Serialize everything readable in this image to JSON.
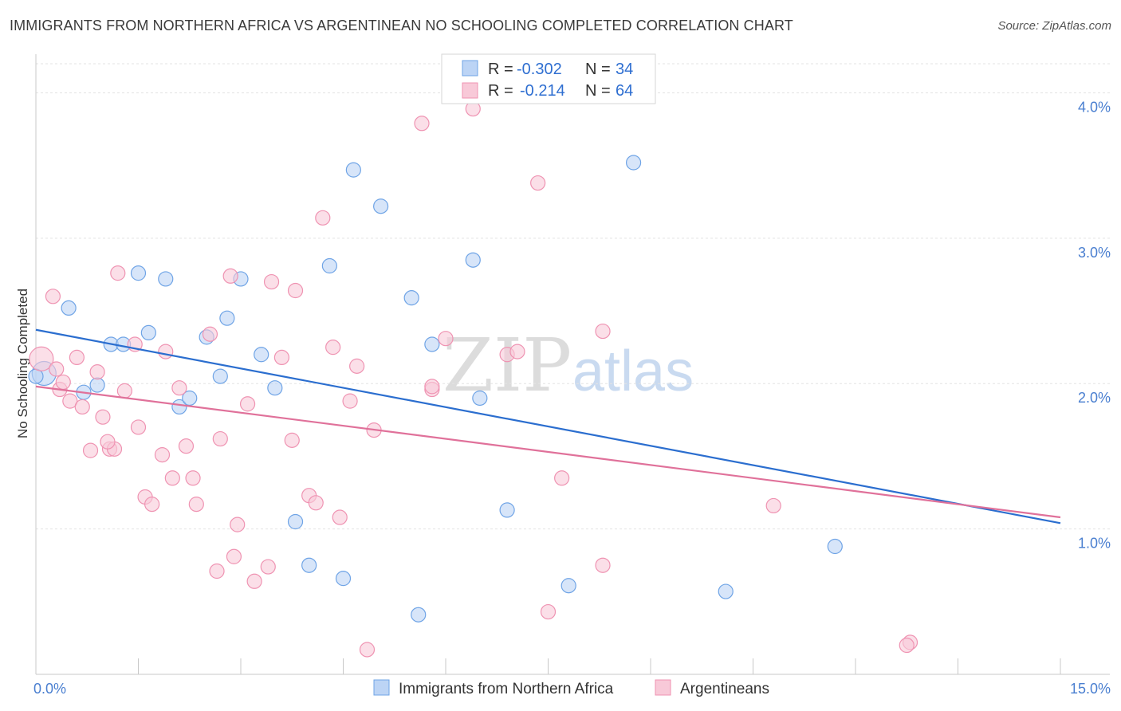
{
  "title": "IMMIGRANTS FROM NORTHERN AFRICA VS ARGENTINEAN NO SCHOOLING COMPLETED CORRELATION CHART",
  "source": "Source: ZipAtlas.com",
  "watermark": {
    "zip": "ZIP",
    "atlas": "atlas"
  },
  "colors": {
    "blue": "#6fa4e6",
    "blue_fill": "#bcd4f5",
    "blue_line": "#2b6ecf",
    "pink": "#ef93b2",
    "pink_fill": "#f8c9d8",
    "pink_line": "#e0719a",
    "grid": "#e3e3e3",
    "axis_text": "#4a7fd0"
  },
  "stats": [
    {
      "r_label": "R =",
      "r": "-0.302",
      "n_label": "N =",
      "n": "34"
    },
    {
      "r_label": "R =",
      "r": "-0.214",
      "n_label": "N =",
      "n": "64"
    }
  ],
  "chart_data": {
    "type": "scatter",
    "ylabel": "No Schooling Completed",
    "xlim": [
      0,
      15
    ],
    "ylim": [
      0,
      4.2
    ],
    "x_tick_labels": [
      "0.0%",
      "15.0%"
    ],
    "y_ticks": [
      1.0,
      2.0,
      3.0,
      4.0
    ],
    "y_tick_labels": [
      "1.0%",
      "2.0%",
      "3.0%",
      "4.0%"
    ],
    "grid": true,
    "legend": [
      "Immigrants from Northern Africa",
      "Argentineans"
    ],
    "series": [
      {
        "name": "Immigrants from Northern Africa",
        "color": "blue",
        "trend": {
          "x": [
            0,
            15
          ],
          "y": [
            2.37,
            1.04
          ]
        },
        "points": [
          {
            "x": 0.12,
            "y": 2.07,
            "big": true
          },
          {
            "x": 0.48,
            "y": 2.52
          },
          {
            "x": 0.9,
            "y": 1.99
          },
          {
            "x": 0.7,
            "y": 1.94
          },
          {
            "x": 1.1,
            "y": 2.27
          },
          {
            "x": 1.28,
            "y": 2.27
          },
          {
            "x": 1.5,
            "y": 2.76
          },
          {
            "x": 1.65,
            "y": 2.35
          },
          {
            "x": 1.9,
            "y": 2.72
          },
          {
            "x": 2.1,
            "y": 1.84
          },
          {
            "x": 2.25,
            "y": 1.9
          },
          {
            "x": 2.5,
            "y": 2.32
          },
          {
            "x": 2.8,
            "y": 2.45
          },
          {
            "x": 2.7,
            "y": 2.05
          },
          {
            "x": 3.0,
            "y": 2.72
          },
          {
            "x": 3.3,
            "y": 2.2
          },
          {
            "x": 3.5,
            "y": 1.97
          },
          {
            "x": 3.8,
            "y": 1.05
          },
          {
            "x": 4.0,
            "y": 0.75
          },
          {
            "x": 4.3,
            "y": 2.81
          },
          {
            "x": 4.5,
            "y": 0.66
          },
          {
            "x": 4.65,
            "y": 3.47
          },
          {
            "x": 5.05,
            "y": 3.22
          },
          {
            "x": 5.5,
            "y": 2.59
          },
          {
            "x": 5.6,
            "y": 0.41
          },
          {
            "x": 5.8,
            "y": 2.27
          },
          {
            "x": 6.4,
            "y": 2.85
          },
          {
            "x": 6.5,
            "y": 1.9
          },
          {
            "x": 6.9,
            "y": 1.13
          },
          {
            "x": 7.8,
            "y": 0.61
          },
          {
            "x": 8.75,
            "y": 3.52
          },
          {
            "x": 10.1,
            "y": 0.57
          },
          {
            "x": 11.7,
            "y": 0.88
          },
          {
            "x": 0.0,
            "y": 2.05
          }
        ]
      },
      {
        "name": "Argentineans",
        "color": "pink",
        "trend": {
          "x": [
            0,
            15
          ],
          "y": [
            1.98,
            1.08
          ]
        },
        "points": [
          {
            "x": 0.08,
            "y": 2.17,
            "big": true
          },
          {
            "x": 0.25,
            "y": 2.6
          },
          {
            "x": 0.35,
            "y": 1.96
          },
          {
            "x": 0.4,
            "y": 2.01
          },
          {
            "x": 0.5,
            "y": 1.88
          },
          {
            "x": 0.6,
            "y": 2.18
          },
          {
            "x": 0.68,
            "y": 1.84
          },
          {
            "x": 0.8,
            "y": 1.54
          },
          {
            "x": 0.9,
            "y": 2.08
          },
          {
            "x": 0.98,
            "y": 1.77
          },
          {
            "x": 1.08,
            "y": 1.55
          },
          {
            "x": 1.15,
            "y": 1.55
          },
          {
            "x": 1.2,
            "y": 2.76
          },
          {
            "x": 1.3,
            "y": 1.95
          },
          {
            "x": 1.45,
            "y": 2.27
          },
          {
            "x": 1.5,
            "y": 1.7
          },
          {
            "x": 1.6,
            "y": 1.22
          },
          {
            "x": 1.7,
            "y": 1.17
          },
          {
            "x": 1.85,
            "y": 1.51
          },
          {
            "x": 1.9,
            "y": 2.22
          },
          {
            "x": 2.0,
            "y": 1.35
          },
          {
            "x": 2.1,
            "y": 1.97
          },
          {
            "x": 2.2,
            "y": 1.57
          },
          {
            "x": 2.3,
            "y": 1.35
          },
          {
            "x": 2.35,
            "y": 1.17
          },
          {
            "x": 2.55,
            "y": 2.34
          },
          {
            "x": 2.65,
            "y": 0.71
          },
          {
            "x": 2.7,
            "y": 1.62
          },
          {
            "x": 2.85,
            "y": 2.74
          },
          {
            "x": 2.9,
            "y": 0.81
          },
          {
            "x": 2.95,
            "y": 1.03
          },
          {
            "x": 3.1,
            "y": 1.86
          },
          {
            "x": 3.2,
            "y": 0.64
          },
          {
            "x": 3.4,
            "y": 0.74
          },
          {
            "x": 3.45,
            "y": 2.7
          },
          {
            "x": 3.6,
            "y": 2.18
          },
          {
            "x": 3.75,
            "y": 1.61
          },
          {
            "x": 3.8,
            "y": 2.64
          },
          {
            "x": 4.0,
            "y": 1.23
          },
          {
            "x": 4.1,
            "y": 1.18
          },
          {
            "x": 4.2,
            "y": 3.14
          },
          {
            "x": 4.35,
            "y": 2.25
          },
          {
            "x": 4.45,
            "y": 1.08
          },
          {
            "x": 4.6,
            "y": 1.88
          },
          {
            "x": 4.7,
            "y": 2.12
          },
          {
            "x": 4.85,
            "y": 0.17
          },
          {
            "x": 4.95,
            "y": 1.68
          },
          {
            "x": 5.8,
            "y": 1.96
          },
          {
            "x": 5.65,
            "y": 3.79
          },
          {
            "x": 5.8,
            "y": 1.98
          },
          {
            "x": 6.0,
            "y": 2.31
          },
          {
            "x": 6.4,
            "y": 3.89
          },
          {
            "x": 6.9,
            "y": 2.2
          },
          {
            "x": 7.05,
            "y": 2.22
          },
          {
            "x": 7.35,
            "y": 3.38
          },
          {
            "x": 7.5,
            "y": 0.43
          },
          {
            "x": 7.7,
            "y": 1.35
          },
          {
            "x": 8.3,
            "y": 0.75
          },
          {
            "x": 8.3,
            "y": 2.36
          },
          {
            "x": 10.8,
            "y": 1.16
          },
          {
            "x": 12.8,
            "y": 0.22
          },
          {
            "x": 12.75,
            "y": 0.2
          },
          {
            "x": 0.3,
            "y": 2.1
          },
          {
            "x": 1.05,
            "y": 1.6
          }
        ]
      }
    ]
  }
}
